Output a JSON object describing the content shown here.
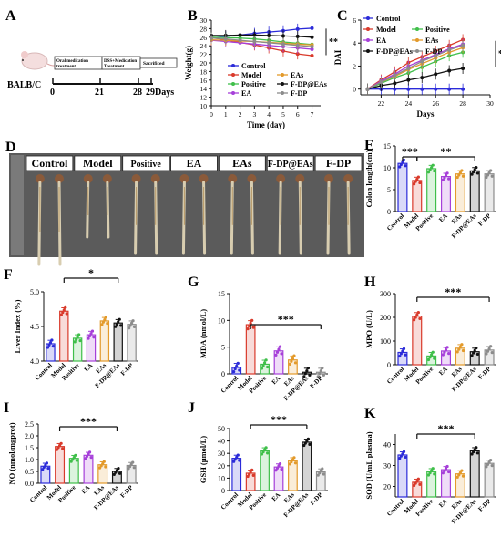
{
  "panel_labels": [
    "A",
    "B",
    "C",
    "D",
    "E",
    "F",
    "G",
    "H",
    "I",
    "J",
    "K"
  ],
  "timeline": {
    "animal": "BALB/C",
    "box1": [
      "Oral medication",
      "treatment"
    ],
    "box2": [
      "DSS+Medication",
      "Treatment"
    ],
    "box3": "Sacrificed",
    "ticks": [
      "0",
      "21",
      "28",
      "29Days"
    ]
  },
  "photo": {
    "groups": [
      "Control",
      "Model",
      "Positive",
      "EA",
      "EAs",
      "F-DP@EAs",
      "F-DP"
    ]
  },
  "colors": {
    "Control": "#2b2bd9",
    "Model": "#d93a2b",
    "Positive": "#3fbf4a",
    "EA": "#a63fd9",
    "EAs": "#e39a2b",
    "F-DP@EAs": "#111111",
    "F-DP": "#8c8c8c"
  },
  "chart_data": [
    {
      "panel": "B",
      "type": "line",
      "xlabel": "Time (day)",
      "ylabel": "Weight(g)",
      "x": [
        0,
        1,
        2,
        3,
        4,
        5,
        6,
        7
      ],
      "xlim": [
        0,
        7.6
      ],
      "ylim": [
        10,
        30
      ],
      "xticks": [
        "0",
        "1",
        "2",
        "3",
        "4",
        "5",
        "6",
        "7"
      ],
      "yticks": [
        "10",
        "12",
        "14",
        "16",
        "18",
        "20",
        "22",
        "24",
        "26",
        "28",
        "30"
      ],
      "legend": [
        "Control",
        "Model",
        "EAs",
        "Positive",
        "F-DP@EAs",
        "EA",
        "F-DP"
      ],
      "significance": "**",
      "series": [
        {
          "name": "Control",
          "values": [
            25.8,
            26.2,
            26.5,
            26.9,
            27.2,
            27.5,
            27.9,
            28.1
          ]
        },
        {
          "name": "Model",
          "values": [
            25.9,
            25.4,
            24.8,
            24.2,
            23.5,
            22.8,
            22.1,
            21.7
          ]
        },
        {
          "name": "Positive",
          "values": [
            26.0,
            25.9,
            25.8,
            25.6,
            25.3,
            24.9,
            24.6,
            24.3
          ]
        },
        {
          "name": "EA",
          "values": [
            25.3,
            25.0,
            24.7,
            24.4,
            24.1,
            23.8,
            23.5,
            23.2
          ]
        },
        {
          "name": "EAs",
          "values": [
            25.4,
            25.3,
            25.1,
            25.0,
            24.8,
            24.6,
            24.4,
            24.2
          ]
        },
        {
          "name": "F-DP@EAs",
          "values": [
            26.4,
            26.4,
            26.5,
            26.5,
            26.4,
            26.3,
            26.2,
            26.0
          ]
        },
        {
          "name": "F-DP",
          "values": [
            25.8,
            25.6,
            25.3,
            25.0,
            24.7,
            24.4,
            24.1,
            23.8
          ]
        }
      ]
    },
    {
      "panel": "C",
      "type": "line",
      "xlabel": "Days",
      "ylabel": "DAI",
      "x": [
        21,
        22,
        23,
        24,
        25,
        26,
        27,
        28
      ],
      "xlim": [
        20.5,
        30
      ],
      "ylim": [
        -0.5,
        6
      ],
      "xticks": [
        "22",
        "24",
        "26",
        "28",
        "30"
      ],
      "yticks": [
        "0",
        "2",
        "4",
        "6"
      ],
      "legend": [
        "Control",
        "Model",
        "Positive",
        "EA",
        "EAs",
        "F-DP@EAs",
        "F-DP"
      ],
      "significance": "**",
      "series": [
        {
          "name": "Control",
          "values": [
            0,
            0,
            0,
            0,
            0,
            0,
            0,
            0
          ]
        },
        {
          "name": "Model",
          "values": [
            0,
            0.8,
            1.5,
            2.3,
            2.8,
            3.3,
            3.8,
            4.3
          ]
        },
        {
          "name": "Positive",
          "values": [
            0,
            0.5,
            1.0,
            1.4,
            1.9,
            2.4,
            2.9,
            3.2
          ]
        },
        {
          "name": "EA",
          "values": [
            0,
            0.7,
            1.3,
            2.0,
            2.5,
            3.0,
            3.5,
            3.9
          ]
        },
        {
          "name": "EAs",
          "values": [
            0,
            0.6,
            1.1,
            1.7,
            2.2,
            2.7,
            3.2,
            3.6
          ]
        },
        {
          "name": "F-DP@EAs",
          "values": [
            0,
            0.3,
            0.5,
            0.8,
            1.0,
            1.3,
            1.6,
            1.8
          ]
        },
        {
          "name": "F-DP",
          "values": [
            0,
            0.6,
            1.2,
            1.8,
            2.4,
            2.9,
            3.4,
            3.8
          ]
        }
      ]
    },
    {
      "panel": "E",
      "type": "bar",
      "ylabel": "Colon length(cm)",
      "categories": [
        "Control",
        "Model",
        "Positive",
        "EA",
        "EAs",
        "F-DP@EAs",
        "F-DP"
      ],
      "values": [
        11.0,
        7.1,
        9.8,
        8.0,
        8.6,
        9.3,
        8.6
      ],
      "ylim": [
        0,
        15
      ],
      "yticks": [
        "0",
        "5",
        "10",
        "15"
      ],
      "significance": [
        {
          "from": "Control",
          "to": "Model",
          "label": "***"
        },
        {
          "from": "Model",
          "to": "F-DP@EAs",
          "label": "**"
        }
      ]
    },
    {
      "panel": "F",
      "type": "bar",
      "ylabel": "Liver Index (%)",
      "categories": [
        "Control",
        "Model",
        "Positive",
        "EA",
        "EAs",
        "F-DP@EAs",
        "F-DP"
      ],
      "values": [
        4.25,
        4.72,
        4.33,
        4.38,
        4.58,
        4.55,
        4.53
      ],
      "ylim": [
        4.0,
        5.0
      ],
      "yticks": [
        "4.0",
        "4.5",
        "5.0"
      ],
      "significance": [
        {
          "from": "Model",
          "to": "F-DP@EAs",
          "label": "*"
        }
      ]
    },
    {
      "panel": "G",
      "type": "bar",
      "ylabel": "MDA (nmol/L)",
      "categories": [
        "Control",
        "Model",
        "Positive",
        "EA",
        "EAs",
        "F-DP@EAs",
        "F-DP"
      ],
      "values": [
        1.2,
        9.2,
        1.8,
        4.3,
        2.6,
        0.3,
        0.3
      ],
      "ylim": [
        0,
        15
      ],
      "yticks": [
        "0",
        "5",
        "10",
        "15"
      ],
      "significance": [
        {
          "from": "Model",
          "to": "F-DP",
          "label": "***"
        }
      ]
    },
    {
      "panel": "H",
      "type": "bar",
      "ylabel": "MPO (U/L)",
      "categories": [
        "Control",
        "Model",
        "Positive",
        "EA",
        "EAs",
        "F-DP@EAs",
        "F-DP"
      ],
      "values": [
        52,
        205,
        37,
        58,
        70,
        55,
        62
      ],
      "ylim": [
        0,
        300
      ],
      "yticks": [
        "0",
        "100",
        "200",
        "300"
      ],
      "significance": [
        {
          "from": "Model",
          "to": "F-DP",
          "label": "***"
        }
      ]
    },
    {
      "panel": "I",
      "type": "bar",
      "ylabel": "NO (nmol/mgprot)",
      "categories": [
        "Control",
        "Model",
        "Positive",
        "EA",
        "EAs",
        "F-DP@EAs",
        "F-DP"
      ],
      "values": [
        0.72,
        1.55,
        1.05,
        1.18,
        0.78,
        0.5,
        0.75
      ],
      "ylim": [
        0,
        2.5
      ],
      "yticks": [
        "0.0",
        "0.5",
        "1.0",
        "1.5",
        "2.0",
        "2.5"
      ],
      "significance": [
        {
          "from": "Model",
          "to": "F-DP@EAs",
          "label": "***"
        }
      ]
    },
    {
      "panel": "J",
      "type": "bar",
      "ylabel": "GSH (μmol/L)",
      "categories": [
        "Control",
        "Model",
        "Positive",
        "EA",
        "EAs",
        "F-DP@EAs",
        "F-DP"
      ],
      "values": [
        26,
        14,
        32,
        19,
        24,
        39,
        15
      ],
      "ylim": [
        0,
        50
      ],
      "yticks": [
        "0",
        "10",
        "20",
        "30",
        "40",
        "50"
      ],
      "significance": [
        {
          "from": "Model",
          "to": "F-DP@EAs",
          "label": "***"
        }
      ]
    },
    {
      "panel": "K",
      "type": "bar",
      "ylabel": "SOD (U/mL plasma)",
      "categories": [
        "Control",
        "Model",
        "Positive",
        "EA",
        "EAs",
        "F-DP@EAs",
        "F-DP"
      ],
      "values": [
        35,
        22,
        27,
        28,
        26,
        37,
        31
      ],
      "ylim": [
        15,
        45
      ],
      "yticks": [
        "20",
        "30",
        "40"
      ],
      "significance": [
        {
          "from": "Model",
          "to": "F-DP@EAs",
          "label": "***"
        }
      ]
    }
  ]
}
